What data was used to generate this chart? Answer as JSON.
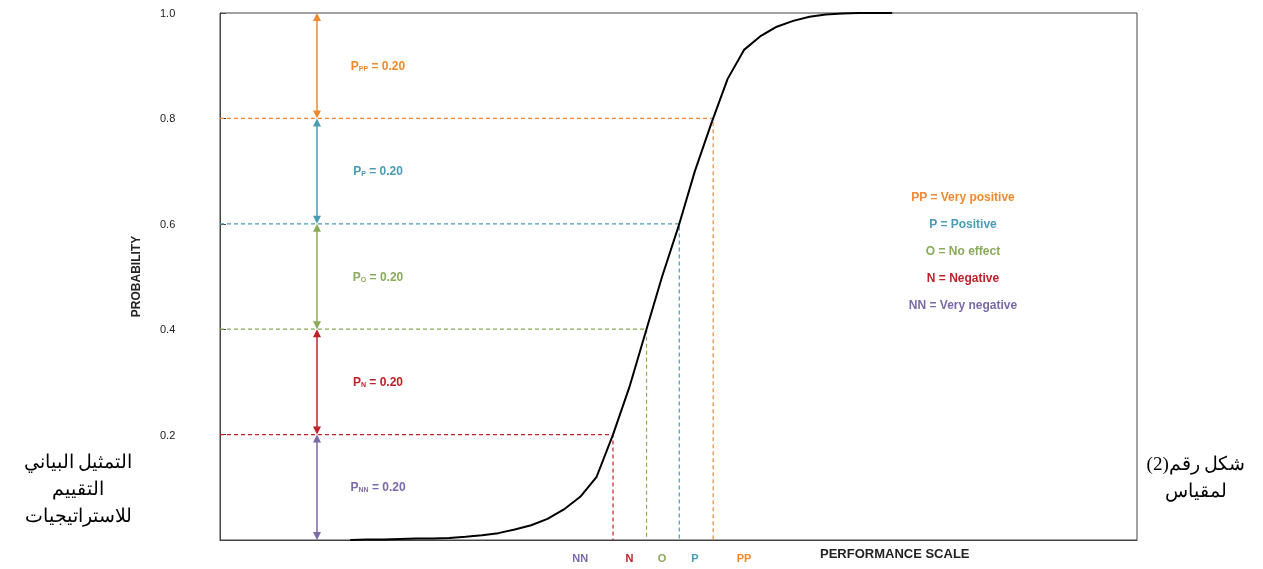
{
  "chart_data": {
    "type": "line",
    "xlabel": "PERFORMANCE SCALE",
    "ylabel": "PROBABILITY",
    "grid": false,
    "ylim": [
      0,
      1
    ],
    "yticks": [
      {
        "value": 0.2,
        "label": "0.2"
      },
      {
        "value": 0.4,
        "label": "0.4"
      },
      {
        "value": 0.6,
        "label": "0.6"
      },
      {
        "value": 0.8,
        "label": "0.8"
      },
      {
        "value": 1,
        "label": "1.0"
      }
    ],
    "categories": [
      null,
      null,
      null,
      null,
      null,
      null,
      null,
      null,
      null,
      null,
      null,
      null,
      null,
      null,
      null,
      null,
      null,
      null,
      null,
      null,
      null,
      null,
      "NN",
      null,
      null,
      "N",
      null,
      "O",
      null,
      "P",
      null,
      null,
      "PP",
      null,
      null,
      null,
      null,
      null,
      null,
      null,
      null,
      null,
      null,
      null,
      null,
      null,
      null,
      null,
      null,
      null,
      null,
      null,
      null,
      null,
      null,
      null,
      null
    ],
    "series": [
      {
        "color": "#000000",
        "values": [
          null,
          null,
          null,
          null,
          null,
          null,
          null,
          null,
          0,
          0.001,
          0.001,
          0.002,
          0.003,
          0.003,
          0.004,
          0.006,
          0.009,
          0.013,
          0.02,
          0.028,
          0.04,
          0.058,
          0.082,
          0.12,
          0.2,
          0.29,
          0.395,
          0.5,
          0.595,
          0.7,
          0.79,
          0.875,
          0.93,
          0.956,
          0.974,
          0.985,
          0.993,
          0.997,
          0.999,
          1,
          1,
          1,
          null,
          null,
          null,
          null,
          null,
          null,
          null,
          null,
          null,
          null,
          null,
          null,
          null,
          null,
          null
        ]
      }
    ],
    "ref_lines": [
      {
        "axis": "y",
        "value": 0.8,
        "color": "#f0892e",
        "line_style": "dashed"
      },
      {
        "axis": "y",
        "value": 0.6,
        "color": "#4a9bb5",
        "line_style": "dashed"
      },
      {
        "axis": "y",
        "value": 0.4,
        "color": "#8aab5a",
        "line_style": "dashed"
      },
      {
        "axis": "y",
        "value": 0.2,
        "color": "#c0202a",
        "line_style": "dashed"
      }
    ],
    "annotations": [
      "P$_{PP}$ = 0.20",
      "P$_{P}$ = 0.20",
      "P$_{O}$ = 0.20",
      "P$_{N}$ = 0.20",
      "P$_{NN}$ = 0.20",
      "PP = Very positive",
      "P = Positive",
      "O = No effect",
      "N = Negative",
      "NN = Very negative",
      "التمثيل البياني\nالتقييم\nللاستراتيجيات",
      "شكل رقم(2)\nلمقياس"
    ]
  }
}
